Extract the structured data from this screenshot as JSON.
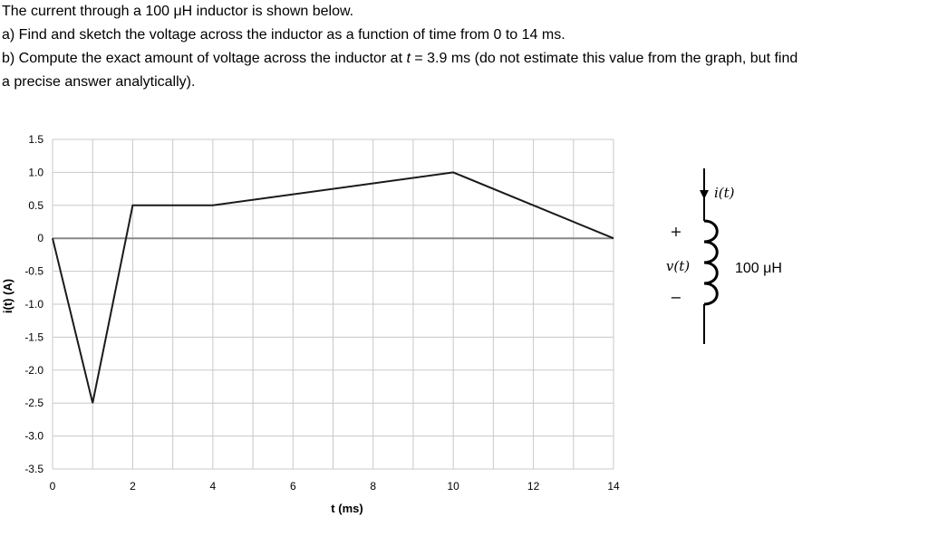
{
  "problem": {
    "line1": "The current through a 100 μH inductor is shown below.",
    "line2": "a) Find and sketch the voltage across the inductor as a function of time from 0 to 14 ms.",
    "line3_pre": "b) Compute the exact amount of voltage across the inductor at ",
    "line3_var": "t",
    "line3_post": " = 3.9 ms (do not estimate this value from the graph, but find",
    "line4": "a precise answer analytically)."
  },
  "chart_data": {
    "type": "line",
    "title": "",
    "xlabel": "t (ms)",
    "ylabel": "i(t) (A)",
    "xlim": [
      0,
      14
    ],
    "ylim": [
      -3.5,
      1.5
    ],
    "xticks": [
      0,
      2,
      4,
      6,
      8,
      10,
      12,
      14
    ],
    "xtick_labels": [
      "0",
      "2",
      "4",
      "6",
      "8",
      "10",
      "12",
      "14"
    ],
    "yticks": [
      1.5,
      1.0,
      0.5,
      0,
      -0.5,
      -1.0,
      -1.5,
      -2.0,
      -2.5,
      -3.0,
      -3.5
    ],
    "ytick_labels": [
      "1.5",
      "1.0",
      "0.5",
      "0",
      "-0.5",
      "-1.0",
      "-1.5",
      "-2.0",
      "-2.5",
      "-3.0",
      "-3.5"
    ],
    "grid": true,
    "series": [
      {
        "x": [
          0,
          1,
          2,
          4,
          10,
          14
        ],
        "y": [
          0,
          -2.5,
          0.5,
          0.5,
          1.0,
          0
        ]
      }
    ],
    "colors": {
      "line": "#1a1a1a",
      "grid": "#c8c8c8",
      "zero_line": "#888888"
    }
  },
  "circuit": {
    "current_label": "i(t)",
    "voltage_label": "v(t)",
    "plus": "+",
    "minus": "−",
    "inductance": "100 μH"
  }
}
